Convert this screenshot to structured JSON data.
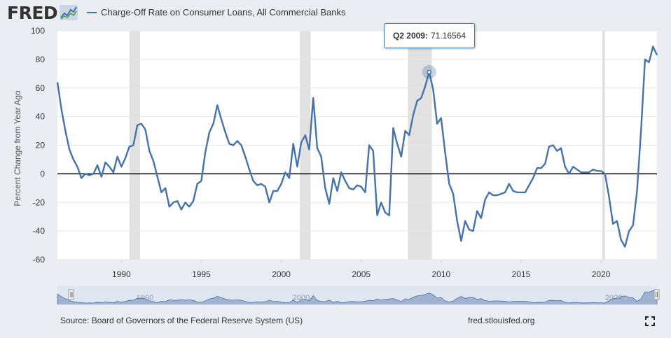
{
  "header": {
    "logo_text": "FRED",
    "logo_icon": "fred-chart-icon",
    "legend_label": "Charge-Off Rate on Consumer Loans, All Commercial Banks"
  },
  "colors": {
    "series": "#4572a7",
    "recession": "#e1e1e1",
    "zero_line": "#000000",
    "grid": "#e6e6e6",
    "navigator_fill": "#9fb3d1",
    "navigator_bg": "#dfe6f0"
  },
  "tooltip": {
    "label": "Q2 2009:",
    "value": "71.16564"
  },
  "footer": {
    "source": "Source: Board of Governors of the Federal Reserve System (US)",
    "url": "fred.stlouisfed.org",
    "fullscreen_icon": "fullscreen-icon"
  },
  "chart_data": {
    "type": "line",
    "title": "",
    "xlabel": "",
    "ylabel": "Percent Change from Year Ago",
    "xlim": [
      1986.0,
      2023.5
    ],
    "ylim": [
      -60,
      100
    ],
    "yticks": [
      100,
      80,
      60,
      40,
      20,
      0,
      -20,
      -40,
      -60
    ],
    "xticks": [
      1990,
      1995,
      2000,
      2005,
      2010,
      2015,
      2020
    ],
    "grid": true,
    "legend_position": "top-left",
    "series": [
      {
        "name": "Charge-Off Rate on Consumer Loans, All Commercial Banks",
        "points": [
          [
            1986.0,
            64
          ],
          [
            1986.25,
            45
          ],
          [
            1986.5,
            30
          ],
          [
            1986.75,
            17
          ],
          [
            1987.0,
            10
          ],
          [
            1987.25,
            5
          ],
          [
            1987.5,
            -3
          ],
          [
            1987.75,
            0
          ],
          [
            1988.0,
            -1
          ],
          [
            1988.25,
            0
          ],
          [
            1988.5,
            6
          ],
          [
            1988.75,
            -2
          ],
          [
            1989.0,
            8
          ],
          [
            1989.25,
            5
          ],
          [
            1989.5,
            1
          ],
          [
            1989.75,
            12
          ],
          [
            1990.0,
            5
          ],
          [
            1990.25,
            11
          ],
          [
            1990.5,
            19
          ],
          [
            1990.75,
            20
          ],
          [
            1991.0,
            34
          ],
          [
            1991.25,
            35
          ],
          [
            1991.5,
            31
          ],
          [
            1991.75,
            16
          ],
          [
            1992.0,
            9
          ],
          [
            1992.25,
            -2
          ],
          [
            1992.5,
            -13
          ],
          [
            1992.75,
            -10
          ],
          [
            1993.0,
            -23
          ],
          [
            1993.25,
            -20
          ],
          [
            1993.5,
            -19
          ],
          [
            1993.75,
            -25
          ],
          [
            1994.0,
            -20
          ],
          [
            1994.25,
            -23
          ],
          [
            1994.5,
            -19
          ],
          [
            1994.75,
            -7
          ],
          [
            1995.0,
            -5
          ],
          [
            1995.25,
            15
          ],
          [
            1995.5,
            29
          ],
          [
            1995.75,
            35
          ],
          [
            1996.0,
            48
          ],
          [
            1996.25,
            38
          ],
          [
            1996.5,
            29
          ],
          [
            1996.75,
            21
          ],
          [
            1997.0,
            20
          ],
          [
            1997.25,
            23
          ],
          [
            1997.5,
            20
          ],
          [
            1997.75,
            12
          ],
          [
            1998.0,
            3
          ],
          [
            1998.25,
            -5
          ],
          [
            1998.5,
            -8
          ],
          [
            1998.75,
            -7
          ],
          [
            1999.0,
            -9
          ],
          [
            1999.25,
            -20
          ],
          [
            1999.5,
            -12
          ],
          [
            1999.75,
            -12
          ],
          [
            2000.0,
            -7
          ],
          [
            2000.25,
            1
          ],
          [
            2000.5,
            -3
          ],
          [
            2000.75,
            21
          ],
          [
            2001.0,
            5
          ],
          [
            2001.25,
            22
          ],
          [
            2001.5,
            27
          ],
          [
            2001.75,
            17
          ],
          [
            2002.0,
            53
          ],
          [
            2002.25,
            18
          ],
          [
            2002.5,
            12
          ],
          [
            2002.75,
            -10
          ],
          [
            2003.0,
            -21
          ],
          [
            2003.25,
            -3
          ],
          [
            2003.5,
            -12
          ],
          [
            2003.75,
            1
          ],
          [
            2004.0,
            -5
          ],
          [
            2004.25,
            -10
          ],
          [
            2004.5,
            -11
          ],
          [
            2004.75,
            -8
          ],
          [
            2005.0,
            -9
          ],
          [
            2005.25,
            -13
          ],
          [
            2005.5,
            20
          ],
          [
            2005.75,
            16
          ],
          [
            2006.0,
            -29
          ],
          [
            2006.25,
            -20
          ],
          [
            2006.5,
            -27
          ],
          [
            2006.75,
            -29
          ],
          [
            2007.0,
            32
          ],
          [
            2007.25,
            21
          ],
          [
            2007.5,
            12
          ],
          [
            2007.75,
            30
          ],
          [
            2008.0,
            27
          ],
          [
            2008.25,
            41
          ],
          [
            2008.5,
            51
          ],
          [
            2008.75,
            53
          ],
          [
            2009.0,
            61
          ],
          [
            2009.25,
            71.16564
          ],
          [
            2009.5,
            59
          ],
          [
            2009.75,
            35
          ],
          [
            2010.0,
            39
          ],
          [
            2010.25,
            15
          ],
          [
            2010.5,
            -7
          ],
          [
            2010.75,
            -14
          ],
          [
            2011.0,
            -33
          ],
          [
            2011.25,
            -47
          ],
          [
            2011.5,
            -33
          ],
          [
            2011.75,
            -39
          ],
          [
            2012.0,
            -40
          ],
          [
            2012.25,
            -26
          ],
          [
            2012.5,
            -31
          ],
          [
            2012.75,
            -18
          ],
          [
            2013.0,
            -13
          ],
          [
            2013.25,
            -15
          ],
          [
            2013.5,
            -15
          ],
          [
            2013.75,
            -14
          ],
          [
            2014.0,
            -13
          ],
          [
            2014.25,
            -7
          ],
          [
            2014.5,
            -12
          ],
          [
            2014.75,
            -13
          ],
          [
            2015.0,
            -13
          ],
          [
            2015.25,
            -13
          ],
          [
            2015.5,
            -8
          ],
          [
            2015.75,
            -3
          ],
          [
            2016.0,
            4
          ],
          [
            2016.25,
            4
          ],
          [
            2016.5,
            7
          ],
          [
            2016.75,
            19
          ],
          [
            2017.0,
            20
          ],
          [
            2017.25,
            16
          ],
          [
            2017.5,
            18
          ],
          [
            2017.75,
            5
          ],
          [
            2018.0,
            0
          ],
          [
            2018.25,
            5
          ],
          [
            2018.5,
            3
          ],
          [
            2018.75,
            1
          ],
          [
            2019.0,
            1
          ],
          [
            2019.25,
            1
          ],
          [
            2019.5,
            3
          ],
          [
            2019.75,
            2
          ],
          [
            2020.0,
            2
          ],
          [
            2020.25,
            0
          ],
          [
            2020.5,
            -16
          ],
          [
            2020.75,
            -35
          ],
          [
            2021.0,
            -33
          ],
          [
            2021.25,
            -46
          ],
          [
            2021.5,
            -51
          ],
          [
            2021.75,
            -40
          ],
          [
            2022.0,
            -36
          ],
          [
            2022.25,
            -12
          ],
          [
            2022.5,
            30
          ],
          [
            2022.75,
            80
          ],
          [
            2023.0,
            78
          ],
          [
            2023.25,
            89
          ],
          [
            2023.5,
            83
          ]
        ]
      }
    ],
    "recessions": [
      [
        1990.5,
        1991.17
      ],
      [
        2001.17,
        2001.83
      ],
      [
        2007.92,
        2009.42
      ],
      [
        2020.08,
        2020.25
      ]
    ],
    "navigator_labels": [
      "1990",
      "2000",
      "2020"
    ],
    "highlight_point": [
      2009.25,
      71.16564
    ]
  }
}
